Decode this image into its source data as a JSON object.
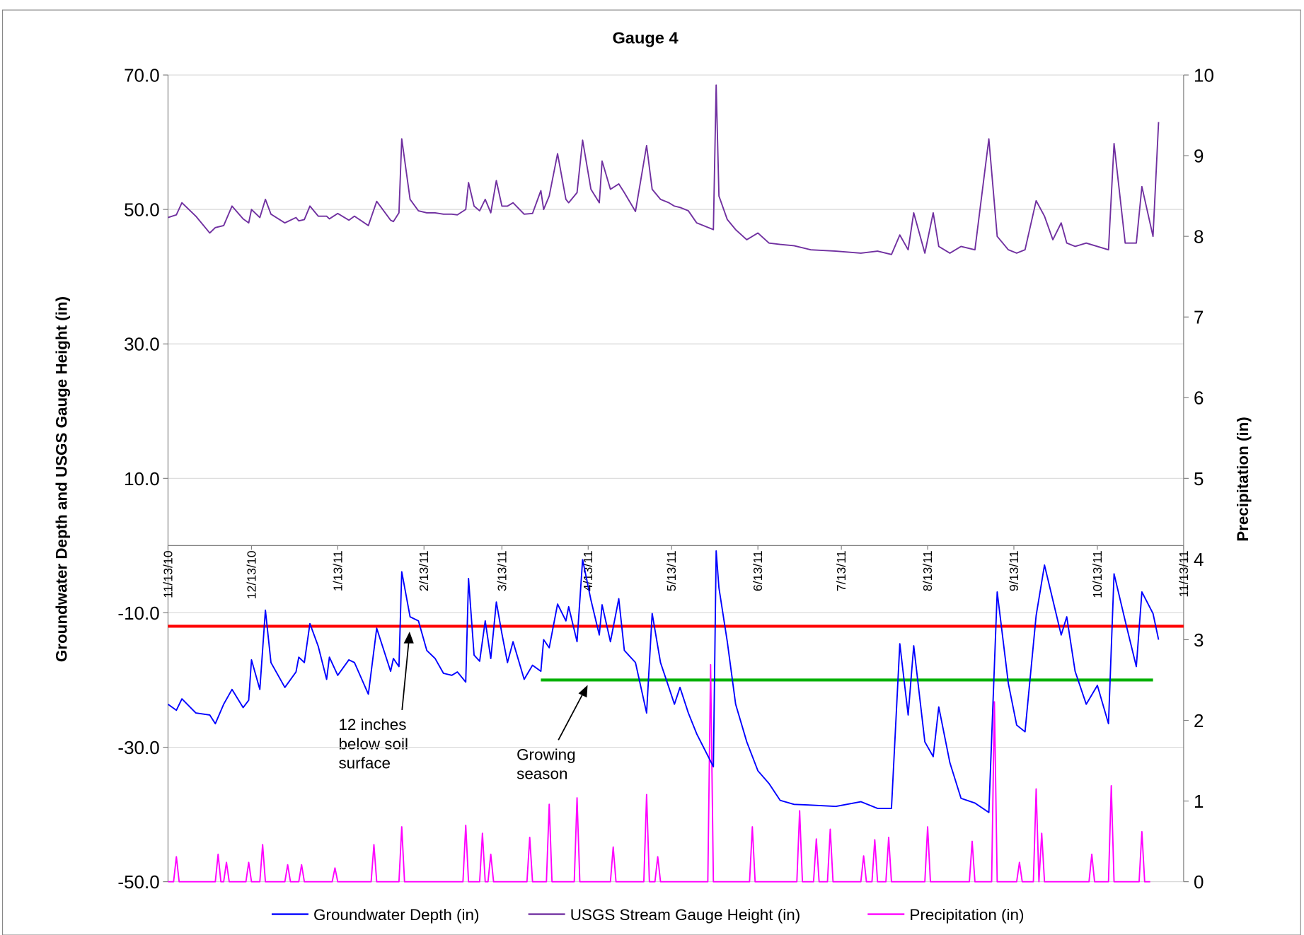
{
  "chart_data": {
    "type": "line",
    "title": "Gauge 4",
    "y_label": "Groundwater Depth and USGS Gauge Height (in)",
    "y2_label": "Precipitation (in)",
    "xlim": [
      "11/13/10",
      "11/13/11"
    ],
    "xticks": [
      "11/13/10",
      "12/13/10",
      "1/13/11",
      "2/13/11",
      "3/13/11",
      "4/13/11",
      "5/13/11",
      "6/13/11",
      "7/13/11",
      "8/13/11",
      "9/13/11",
      "10/13/11",
      "11/13/11"
    ],
    "ylim": [
      -50,
      70
    ],
    "yticks": [
      {
        "value": -50,
        "label": "-50.0"
      },
      {
        "value": -30,
        "label": "-30.0"
      },
      {
        "value": -10,
        "label": "-10.0"
      },
      {
        "value": 10,
        "label": "10.0"
      },
      {
        "value": 30,
        "label": "30.0"
      },
      {
        "value": 50,
        "label": "50.0"
      },
      {
        "value": 70,
        "label": "70.0"
      }
    ],
    "y2lim": [
      0,
      10
    ],
    "y2ticks": [
      0,
      1,
      2,
      3,
      4,
      5,
      6,
      7,
      8,
      9,
      10
    ],
    "grid": true,
    "legend": "bottom",
    "series": [
      {
        "name": "Groundwater Depth (in)",
        "color": "#0000ff",
        "x": [
          "11/13/10",
          "11/16/10",
          "11/18/10",
          "11/23/10",
          "11/28/10",
          "11/30/10",
          "12/3/10",
          "12/6/10",
          "12/10/10",
          "12/12/10",
          "12/13/10",
          "12/16/10",
          "12/18/10",
          "12/20/10",
          "12/25/10",
          "12/29/10",
          "12/30/10",
          "1/1/11",
          "1/3/11",
          "1/6/11",
          "1/9/11",
          "1/10/11",
          "1/13/11",
          "1/17/11",
          "1/19/11",
          "1/24/11",
          "1/27/11",
          "2/1/11",
          "2/2/11",
          "2/4/11",
          "2/5/11",
          "2/8/11",
          "2/11/11",
          "2/14/11",
          "2/17/11",
          "2/20/11",
          "2/23/11",
          "2/25/11",
          "2/28/11",
          "3/1/11",
          "3/3/11",
          "3/5/11",
          "3/7/11",
          "3/9/11",
          "3/11/11",
          "3/13/11",
          "3/15/11",
          "3/17/11",
          "3/21/11",
          "3/24/11",
          "3/27/11",
          "3/28/11",
          "3/30/11",
          "4/2/11",
          "4/5/11",
          "4/6/11",
          "4/9/11",
          "4/11/11",
          "4/14/11",
          "4/17/11",
          "4/18/11",
          "4/21/11",
          "4/24/11",
          "4/26/11",
          "4/30/11",
          "5/4/11",
          "5/6/11",
          "5/9/11",
          "5/12/11",
          "5/14/11",
          "5/16/11",
          "5/19/11",
          "5/22/11",
          "5/28/11",
          "5/29/11",
          "5/30/11",
          "6/2/11",
          "6/5/11",
          "6/9/11",
          "6/13/11",
          "6/17/11",
          "6/21/11",
          "6/26/11",
          "7/2/11",
          "7/11/11",
          "7/20/11",
          "7/26/11",
          "7/31/11",
          "8/3/11",
          "8/6/11",
          "8/8/11",
          "8/12/11",
          "8/15/11",
          "8/17/11",
          "8/21/11",
          "8/25/11",
          "8/30/11",
          "9/4/11",
          "9/7/11",
          "9/11/11",
          "9/14/11",
          "9/17/11",
          "9/21/11",
          "9/24/11",
          "9/27/11",
          "9/30/11",
          "10/2/11",
          "10/5/11",
          "10/9/11",
          "10/13/11",
          "10/17/11",
          "10/19/11",
          "10/23/11",
          "10/27/11",
          "10/29/11",
          "11/2/11",
          "11/4/11"
        ],
        "values": [
          -23.6,
          -24.5,
          -22.8,
          -24.9,
          -25.2,
          -26.5,
          -23.6,
          -21.4,
          -24.1,
          -23.0,
          -17.0,
          -21.4,
          -9.6,
          -17.4,
          -21.1,
          -18.8,
          -16.6,
          -17.4,
          -11.6,
          -15.0,
          -19.9,
          -16.6,
          -19.3,
          -17.0,
          -17.4,
          -22.1,
          -12.3,
          -18.7,
          -16.8,
          -18.0,
          -3.9,
          -10.6,
          -11.2,
          -15.6,
          -16.8,
          -19.0,
          -19.3,
          -18.8,
          -20.3,
          -4.9,
          -16.3,
          -17.2,
          -11.2,
          -16.8,
          -8.4,
          -13.1,
          -17.4,
          -14.3,
          -19.9,
          -17.8,
          -18.7,
          -14.0,
          -15.2,
          -8.7,
          -11.2,
          -9.1,
          -14.3,
          -2.1,
          -8.1,
          -13.3,
          -8.8,
          -14.3,
          -7.9,
          -15.6,
          -17.4,
          -24.9,
          -10.1,
          -17.4,
          -21.1,
          -23.6,
          -21.1,
          -24.9,
          -28.0,
          -32.9,
          -0.8,
          -6.3,
          -14.3,
          -23.6,
          -29.2,
          -33.5,
          -35.4,
          -37.9,
          -38.5,
          -38.6,
          -38.8,
          -38.1,
          -39.1,
          -39.1,
          -14.6,
          -25.2,
          -14.9,
          -29.2,
          -31.4,
          -24.0,
          -32.3,
          -37.6,
          -38.3,
          -39.7,
          -6.9,
          -20.5,
          -26.7,
          -27.7,
          -10.4,
          -2.9,
          -8.1,
          -13.3,
          -10.6,
          -18.7,
          -23.6,
          -20.8,
          -26.5,
          -4.2,
          -11.2,
          -18.0,
          -6.9,
          -10.1,
          -14.0
        ]
      },
      {
        "name": "USGS Stream Gauge Height (in)",
        "color": "#7030a0",
        "x": [
          "11/13/10",
          "11/16/10",
          "11/18/10",
          "11/23/10",
          "11/28/10",
          "11/30/10",
          "12/3/10",
          "12/6/10",
          "12/10/10",
          "12/12/10",
          "12/13/10",
          "12/16/10",
          "12/18/10",
          "12/20/10",
          "12/25/10",
          "12/29/10",
          "12/30/10",
          "1/1/11",
          "1/3/11",
          "1/6/11",
          "1/9/11",
          "1/10/11",
          "1/13/11",
          "1/17/11",
          "1/19/11",
          "1/24/11",
          "1/27/11",
          "2/1/11",
          "2/2/11",
          "2/4/11",
          "2/5/11",
          "2/8/11",
          "2/11/11",
          "2/14/11",
          "2/17/11",
          "2/20/11",
          "2/23/11",
          "2/25/11",
          "2/28/11",
          "3/1/11",
          "3/3/11",
          "3/5/11",
          "3/7/11",
          "3/9/11",
          "3/11/11",
          "3/13/11",
          "3/15/11",
          "3/17/11",
          "3/21/11",
          "3/24/11",
          "3/27/11",
          "3/28/11",
          "3/30/11",
          "4/2/11",
          "4/5/11",
          "4/6/11",
          "4/9/11",
          "4/11/11",
          "4/14/11",
          "4/17/11",
          "4/18/11",
          "4/21/11",
          "4/24/11",
          "4/26/11",
          "4/30/11",
          "5/4/11",
          "5/6/11",
          "5/9/11",
          "5/12/11",
          "5/14/11",
          "5/16/11",
          "5/19/11",
          "5/22/11",
          "5/28/11",
          "5/29/11",
          "5/30/11",
          "6/2/11",
          "6/5/11",
          "6/9/11",
          "6/13/11",
          "6/17/11",
          "6/21/11",
          "6/26/11",
          "7/2/11",
          "7/11/11",
          "7/20/11",
          "7/26/11",
          "7/31/11",
          "8/3/11",
          "8/6/11",
          "8/8/11",
          "8/12/11",
          "8/15/11",
          "8/17/11",
          "8/21/11",
          "8/25/11",
          "8/30/11",
          "9/4/11",
          "9/7/11",
          "9/11/11",
          "9/14/11",
          "9/17/11",
          "9/21/11",
          "9/24/11",
          "9/27/11",
          "9/30/11",
          "10/2/11",
          "10/5/11",
          "10/9/11",
          "10/13/11",
          "10/17/11",
          "10/19/11",
          "10/23/11",
          "10/27/11",
          "10/29/11",
          "11/2/11",
          "11/4/11"
        ],
        "values": [
          48.8,
          49.2,
          51.0,
          49.0,
          46.5,
          47.3,
          47.6,
          50.5,
          48.6,
          48.0,
          50.0,
          48.8,
          51.5,
          49.3,
          48.0,
          48.8,
          48.3,
          48.5,
          50.5,
          49.0,
          49.0,
          48.6,
          49.4,
          48.4,
          49.0,
          47.6,
          51.2,
          48.4,
          48.2,
          49.5,
          60.5,
          51.5,
          49.8,
          49.5,
          49.5,
          49.3,
          49.3,
          49.2,
          50.0,
          54.0,
          50.5,
          49.8,
          51.5,
          49.5,
          54.3,
          50.5,
          50.5,
          51.0,
          49.3,
          49.4,
          52.8,
          50.0,
          52.0,
          58.3,
          51.5,
          51.0,
          52.5,
          60.3,
          53.0,
          51.0,
          57.2,
          53.0,
          53.8,
          52.5,
          49.7,
          59.5,
          53.0,
          51.5,
          51.0,
          50.5,
          50.3,
          49.8,
          48.0,
          47.0,
          68.5,
          52.0,
          48.5,
          47.0,
          45.5,
          46.5,
          45.0,
          44.8,
          44.6,
          44.0,
          43.8,
          43.5,
          43.8,
          43.3,
          46.2,
          44.0,
          49.5,
          43.5,
          49.5,
          44.5,
          43.5,
          44.5,
          44.0,
          60.5,
          46.0,
          44.0,
          43.5,
          44.0,
          51.3,
          49.0,
          45.5,
          48.0,
          45.0,
          44.5,
          45.0,
          44.5,
          44.0,
          59.8,
          45.0,
          45.0,
          53.4,
          46.0,
          63.0
        ]
      },
      {
        "name": "Precipitation (in)",
        "color": "#ff00ff",
        "axis": "y2",
        "x": [
          "11/13/10",
          "11/15/10",
          "11/16/10",
          "11/17/10",
          "11/30/10",
          "12/1/10",
          "12/2/10",
          "12/3/10",
          "12/4/10",
          "12/5/10",
          "12/11/10",
          "12/12/10",
          "12/13/10",
          "12/16/10",
          "12/17/10",
          "12/18/10",
          "12/25/10",
          "12/26/10",
          "12/27/10",
          "12/30/10",
          "12/31/10",
          "1/1/11",
          "1/11/11",
          "1/12/11",
          "1/13/11",
          "1/25/11",
          "1/26/11",
          "1/27/11",
          "2/4/11",
          "2/5/11",
          "2/6/11",
          "2/27/11",
          "2/28/11",
          "3/1/11",
          "3/5/11",
          "3/6/11",
          "3/7/11",
          "3/8/11",
          "3/9/11",
          "3/10/11",
          "3/22/11",
          "3/23/11",
          "3/24/11",
          "3/29/11",
          "3/30/11",
          "3/31/11",
          "4/8/11",
          "4/9/11",
          "4/10/11",
          "4/21/11",
          "4/22/11",
          "4/23/11",
          "5/3/11",
          "5/4/11",
          "5/5/11",
          "5/7/11",
          "5/8/11",
          "5/9/11",
          "5/26/11",
          "5/27/11",
          "5/28/11",
          "6/10/11",
          "6/11/11",
          "6/12/11",
          "6/27/11",
          "6/28/11",
          "6/29/11",
          "7/3/11",
          "7/4/11",
          "7/5/11",
          "7/8/11",
          "7/9/11",
          "7/10/11",
          "7/20/11",
          "7/21/11",
          "7/22/11",
          "7/24/11",
          "7/25/11",
          "7/26/11",
          "7/29/11",
          "7/30/11",
          "7/31/11",
          "8/12/11",
          "8/13/11",
          "8/14/11",
          "8/28/11",
          "8/29/11",
          "8/30/11",
          "9/5/11",
          "9/6/11",
          "9/7/11",
          "9/14/11",
          "9/15/11",
          "9/16/11",
          "9/20/11",
          "9/21/11",
          "9/22/11",
          "9/23/11",
          "9/24/11",
          "10/10/11",
          "10/11/11",
          "10/12/11",
          "10/17/11",
          "10/18/11",
          "10/19/11",
          "10/28/11",
          "10/29/11",
          "10/30/11",
          "11/1/11"
        ],
        "values": [
          0,
          0,
          0.31,
          0,
          0,
          0.34,
          0,
          0,
          0.24,
          0,
          0,
          0.24,
          0,
          0,
          0.46,
          0,
          0,
          0.21,
          0,
          0,
          0.21,
          0,
          0,
          0.17,
          0,
          0,
          0.46,
          0,
          0,
          0.68,
          0,
          0,
          0.7,
          0,
          0,
          0.6,
          0,
          0,
          0.34,
          0,
          0,
          0.55,
          0,
          0,
          0.96,
          0,
          0,
          1.04,
          0,
          0,
          0.43,
          0,
          0,
          1.08,
          0,
          0,
          0.31,
          0,
          0,
          2.69,
          0,
          0,
          0.68,
          0,
          0,
          0.88,
          0,
          0,
          0.53,
          0,
          0,
          0.65,
          0,
          0,
          0.32,
          0,
          0,
          0.52,
          0,
          0,
          0.55,
          0,
          0,
          0.68,
          0,
          0,
          0.5,
          0,
          0,
          2.23,
          0,
          0,
          0.24,
          0,
          0,
          1.15,
          0,
          0.6,
          0,
          0,
          0.34,
          0,
          0,
          1.19,
          0,
          0,
          0.62,
          0,
          0
        ]
      }
    ],
    "reference_lines": [
      {
        "value": -12,
        "color": "#ff0000"
      },
      {
        "value": -20,
        "x": [
          "3/27/11",
          "11/2/11"
        ],
        "color": "#00b000"
      }
    ],
    "annotations": [
      {
        "text": [
          "12 inches",
          "below soil",
          "surface"
        ]
      },
      {
        "text": [
          "Growing",
          "season"
        ]
      }
    ]
  }
}
